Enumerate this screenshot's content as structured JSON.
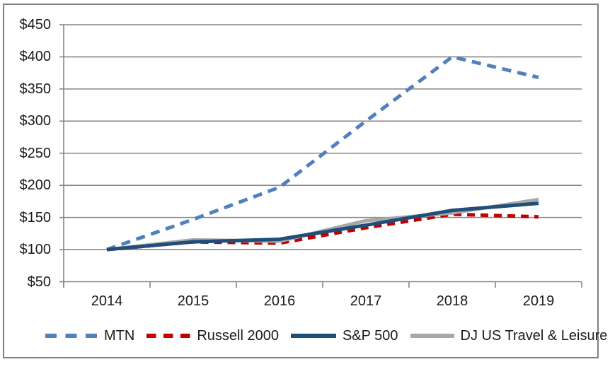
{
  "figure": {
    "background_color": "#ffffff",
    "frame_border_color": "#808080",
    "gridline_color": "#868686",
    "axis_color": "#868686",
    "text_color": "#1a1a1a"
  },
  "chart_data": {
    "type": "line",
    "title": "",
    "xlabel": "",
    "ylabel": "",
    "x": [
      "2014",
      "2015",
      "2016",
      "2017",
      "2018",
      "2019"
    ],
    "y_tick_labels": [
      "$450",
      "$400",
      "$350",
      "$300",
      "$250",
      "$200",
      "$150",
      "$100",
      "$50"
    ],
    "ylim": [
      50,
      450
    ],
    "y_tick_step": 50,
    "grid": true,
    "legend_position": "bottom",
    "series": [
      {
        "name": "MTN",
        "color": "#4F81BD",
        "style": "dashed",
        "values": [
          100,
          147,
          197,
          300,
          400,
          368
        ]
      },
      {
        "name": "Russell 2000",
        "color": "#C00000",
        "style": "dashed",
        "values": [
          100,
          112,
          110,
          134,
          155,
          151
        ]
      },
      {
        "name": "S&P 500",
        "color": "#1F4E79",
        "style": "solid",
        "values": [
          100,
          112,
          116,
          138,
          161,
          172
        ]
      },
      {
        "name": "DJ US Travel & Leisure",
        "color": "#A8A8A8",
        "style": "solid",
        "values": [
          100,
          115,
          113,
          145,
          157,
          178
        ]
      }
    ],
    "draw_order": [
      0,
      1,
      3,
      2
    ]
  }
}
